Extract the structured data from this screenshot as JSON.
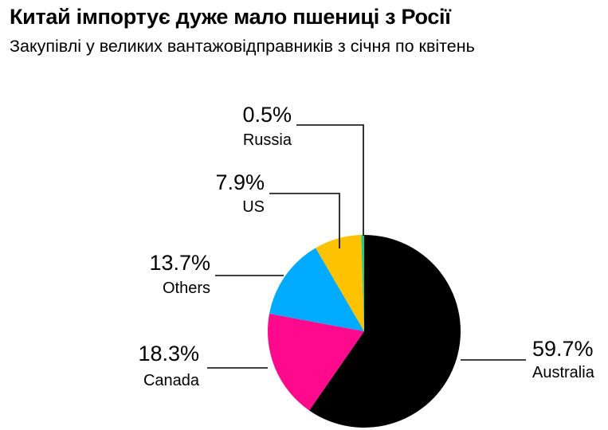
{
  "chart_data": {
    "type": "pie",
    "title": "Китай імпортує дуже мало пшениці з Росії",
    "subtitle": "Закупівлі у великих вантажовідправників з січня по квітень",
    "start": "top",
    "direction": "clockwise",
    "slices": [
      {
        "label": "Australia",
        "value": 59.7,
        "value_label": "59.7%",
        "color": "#000000"
      },
      {
        "label": "Canada",
        "value": 18.3,
        "value_label": "18.3%",
        "color": "#ff0a8c"
      },
      {
        "label": "Others",
        "value": 13.7,
        "value_label": "13.7%",
        "color": "#00aaff"
      },
      {
        "label": "US",
        "value": 7.9,
        "value_label": "7.9%",
        "color": "#ffc200"
      },
      {
        "label": "Russia",
        "value": 0.5,
        "value_label": "0.5%",
        "color": "#28c88c"
      }
    ]
  }
}
